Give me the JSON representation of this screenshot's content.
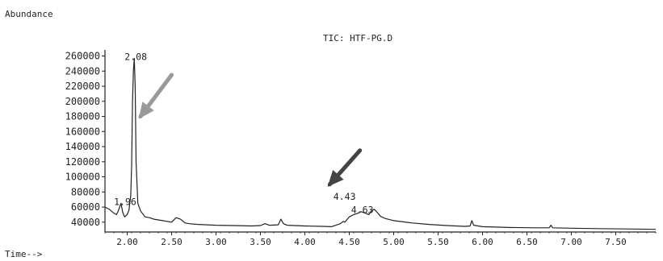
{
  "chart_data": {
    "type": "line",
    "title": "TIC: HTF-PG.D",
    "ylabel": "Abundance",
    "xlabel": "Time-->",
    "xlim": [
      1.75,
      7.95
    ],
    "ylim": [
      27000,
      268000
    ],
    "x_ticks": [
      {
        "value": 2.0,
        "label": "2.00"
      },
      {
        "value": 2.5,
        "label": "2.50"
      },
      {
        "value": 3.0,
        "label": "3.00"
      },
      {
        "value": 3.5,
        "label": "3.50"
      },
      {
        "value": 4.0,
        "label": "4.00"
      },
      {
        "value": 4.5,
        "label": "4.50"
      },
      {
        "value": 5.0,
        "label": "5.00"
      },
      {
        "value": 5.5,
        "label": "5.50"
      },
      {
        "value": 6.0,
        "label": "6.00"
      },
      {
        "value": 6.5,
        "label": "6.50"
      },
      {
        "value": 7.0,
        "label": "7.00"
      },
      {
        "value": 7.5,
        "label": "7.50"
      }
    ],
    "y_ticks": [
      {
        "value": 40000,
        "label": "40000"
      },
      {
        "value": 60000,
        "label": "60000"
      },
      {
        "value": 80000,
        "label": "80000"
      },
      {
        "value": 100000,
        "label": "100000"
      },
      {
        "value": 120000,
        "label": "120000"
      },
      {
        "value": 140000,
        "label": "140000"
      },
      {
        "value": 160000,
        "label": "160000"
      },
      {
        "value": 180000,
        "label": "180000"
      },
      {
        "value": 200000,
        "label": "200000"
      },
      {
        "value": 220000,
        "label": "220000"
      },
      {
        "value": 240000,
        "label": "240000"
      },
      {
        "value": 260000,
        "label": "260000"
      }
    ],
    "series": [
      {
        "color": "#222222",
        "points": [
          [
            1.75,
            60000
          ],
          [
            1.8,
            57000
          ],
          [
            1.85,
            52000
          ],
          [
            1.88,
            50000
          ],
          [
            1.9,
            55000
          ],
          [
            1.93,
            65000
          ],
          [
            1.95,
            53000
          ],
          [
            1.97,
            47000
          ],
          [
            2.0,
            50000
          ],
          [
            2.02,
            56000
          ],
          [
            2.04,
            75000
          ],
          [
            2.05,
            115000
          ],
          [
            2.06,
            200000
          ],
          [
            2.07,
            240000
          ],
          [
            2.08,
            257000
          ],
          [
            2.09,
            220000
          ],
          [
            2.1,
            120000
          ],
          [
            2.12,
            65000
          ],
          [
            2.15,
            55000
          ],
          [
            2.2,
            47000
          ],
          [
            2.25,
            46000
          ],
          [
            2.3,
            44000
          ],
          [
            2.4,
            42000
          ],
          [
            2.5,
            40000
          ],
          [
            2.55,
            46000
          ],
          [
            2.6,
            44000
          ],
          [
            2.65,
            39000
          ],
          [
            2.7,
            38000
          ],
          [
            2.8,
            37000
          ],
          [
            3.0,
            36000
          ],
          [
            3.2,
            35500
          ],
          [
            3.4,
            35000
          ],
          [
            3.5,
            35500
          ],
          [
            3.55,
            38000
          ],
          [
            3.6,
            36000
          ],
          [
            3.7,
            36500
          ],
          [
            3.73,
            44000
          ],
          [
            3.76,
            38000
          ],
          [
            3.8,
            36000
          ],
          [
            4.0,
            35000
          ],
          [
            4.2,
            34500
          ],
          [
            4.3,
            34000
          ],
          [
            4.4,
            38000
          ],
          [
            4.43,
            41000
          ],
          [
            4.45,
            40000
          ],
          [
            4.5,
            47000
          ],
          [
            4.55,
            50000
          ],
          [
            4.6,
            52000
          ],
          [
            4.63,
            54000
          ],
          [
            4.68,
            52000
          ],
          [
            4.72,
            50000
          ],
          [
            4.75,
            55000
          ],
          [
            4.78,
            57000
          ],
          [
            4.8,
            55000
          ],
          [
            4.85,
            48000
          ],
          [
            4.9,
            45000
          ],
          [
            5.0,
            42000
          ],
          [
            5.2,
            39000
          ],
          [
            5.4,
            37000
          ],
          [
            5.6,
            35500
          ],
          [
            5.8,
            34500
          ],
          [
            5.86,
            35000
          ],
          [
            5.88,
            42000
          ],
          [
            5.9,
            36000
          ],
          [
            6.0,
            34000
          ],
          [
            6.3,
            33000
          ],
          [
            6.6,
            32500
          ],
          [
            6.75,
            32500
          ],
          [
            6.77,
            36000
          ],
          [
            6.79,
            32500
          ],
          [
            7.0,
            32000
          ],
          [
            7.3,
            31500
          ],
          [
            7.6,
            31000
          ],
          [
            7.95,
            30500
          ]
        ]
      }
    ],
    "annotations": [
      {
        "text": "2.08",
        "x": 2.08,
        "y": 257000
      },
      {
        "text": "1.96",
        "x": 1.96,
        "y": 65000
      },
      {
        "text": "4.43",
        "x": 4.43,
        "y": 72000
      },
      {
        "text": "4.63",
        "x": 4.63,
        "y": 54000
      }
    ],
    "arrows": [
      {
        "from": [
          2.5,
          235000
        ],
        "to": [
          2.15,
          180000
        ],
        "color": "#999999"
      },
      {
        "from": [
          4.62,
          135000
        ],
        "to": [
          4.28,
          90000
        ],
        "color": "#444444"
      }
    ],
    "grid": false
  }
}
